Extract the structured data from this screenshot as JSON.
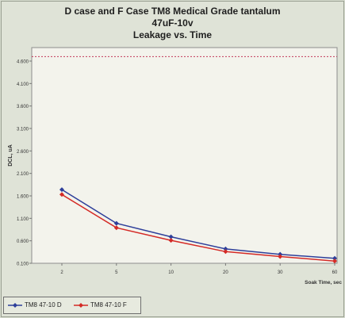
{
  "chart_data": {
    "type": "line",
    "title_lines": [
      "D case and F Case TM8 Medical Grade tantalum",
      "47uF-10v",
      "Leakage vs. Time"
    ],
    "xlabel": "Soak Time, sec",
    "ylabel": "DCL, uA",
    "categories": [
      "2",
      "5",
      "10",
      "20",
      "30",
      "60"
    ],
    "yticks": [
      "0.100",
      "0.600",
      "1.100",
      "1.600",
      "2.100",
      "2.600",
      "3.100",
      "3.600",
      "4.100",
      "4.600"
    ],
    "ylim": [
      0.1,
      4.9
    ],
    "reference_line": 4.7,
    "grid": false,
    "legend_position": "bottom-left",
    "series": [
      {
        "name": "TM8 47-10 D",
        "color": "#2e3f9a",
        "values": [
          1.74,
          0.99,
          0.69,
          0.42,
          0.3,
          0.21
        ]
      },
      {
        "name": "TM8 47-10 F",
        "color": "#d42a26",
        "values": [
          1.63,
          0.89,
          0.61,
          0.36,
          0.25,
          0.15
        ]
      }
    ],
    "colors": {
      "plot_background": "#f3f3ec",
      "reference_line": "#c23a5a"
    }
  }
}
